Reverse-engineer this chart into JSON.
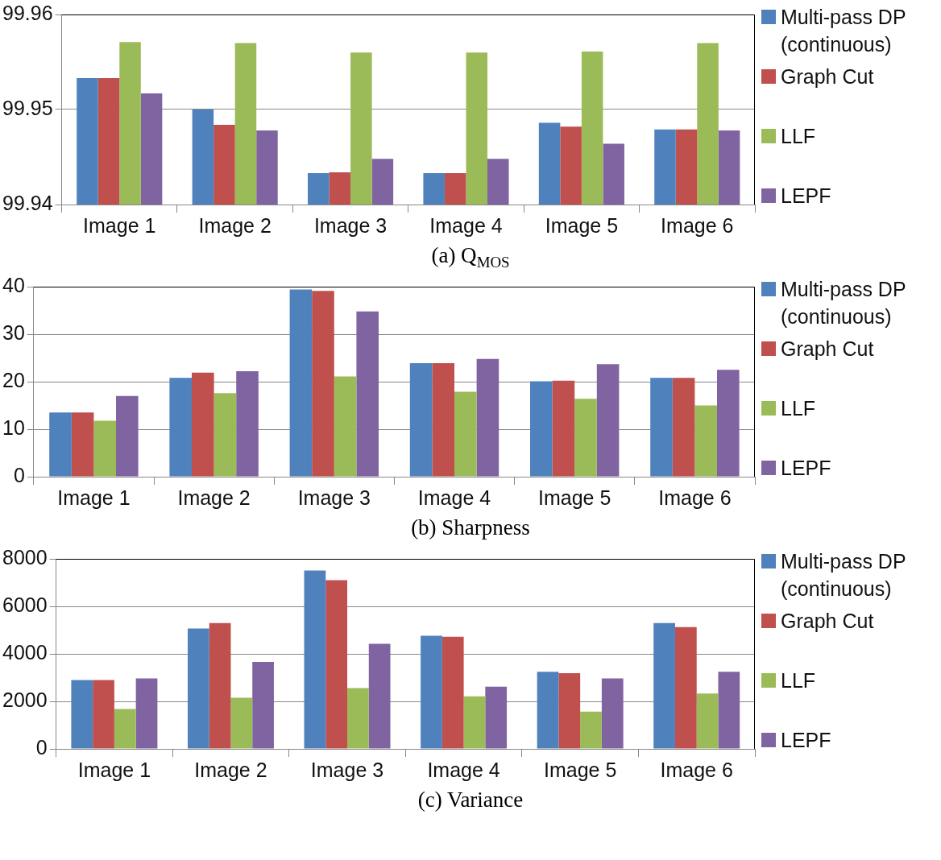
{
  "chart_data": [
    {
      "type": "bar",
      "title": "(a) Q$_{MOS}$",
      "categories": [
        "Image 1",
        "Image 2",
        "Image 3",
        "Image 4",
        "Image 5",
        "Image 6"
      ],
      "series": [
        {
          "name": "Multi-pass DP (continuous)",
          "color": "#4f81bd",
          "values": [
            99.9533,
            99.95,
            99.9433,
            99.9433,
            99.9486,
            99.9479
          ]
        },
        {
          "name": "Graph Cut",
          "color": "#c0504d",
          "values": [
            99.9533,
            99.9484,
            99.9434,
            99.9433,
            99.9482,
            99.9479
          ]
        },
        {
          "name": "LLF",
          "color": "#9bbb59",
          "values": [
            99.9571,
            99.957,
            99.956,
            99.956,
            99.9561,
            99.957
          ]
        },
        {
          "name": "LEPF",
          "color": "#8064a2",
          "values": [
            99.9517,
            99.9478,
            99.9448,
            99.9448,
            99.9464,
            99.9478
          ]
        }
      ],
      "ylim": [
        99.94,
        99.96
      ],
      "yticks": [
        99.94,
        99.95,
        99.96
      ],
      "grid": "y",
      "legend": "right"
    },
    {
      "type": "bar",
      "title": "(b) Sharpness",
      "categories": [
        "Image 1",
        "Image 2",
        "Image 3",
        "Image 4",
        "Image 5",
        "Image 6"
      ],
      "series": [
        {
          "name": "Multi-pass DP (continuous)",
          "color": "#4f81bd",
          "values": [
            13.5,
            20.8,
            39.4,
            23.9,
            20.1,
            20.8
          ]
        },
        {
          "name": "Graph Cut",
          "color": "#c0504d",
          "values": [
            13.5,
            21.9,
            39.1,
            23.9,
            20.2,
            20.8
          ]
        },
        {
          "name": "LLF",
          "color": "#9bbb59",
          "values": [
            11.8,
            17.6,
            21.1,
            17.9,
            16.4,
            15.0
          ]
        },
        {
          "name": "LEPF",
          "color": "#8064a2",
          "values": [
            17.0,
            22.2,
            34.8,
            24.8,
            23.7,
            22.5
          ]
        }
      ],
      "ylim": [
        0,
        40
      ],
      "yticks": [
        0,
        10,
        20,
        30,
        40
      ],
      "grid": "y",
      "legend": "right"
    },
    {
      "type": "bar",
      "title": "(c) Variance",
      "categories": [
        "Image 1",
        "Image 2",
        "Image 3",
        "Image 4",
        "Image 5",
        "Image 6"
      ],
      "series": [
        {
          "name": "Multi-pass DP (continuous)",
          "color": "#4f81bd",
          "values": [
            2900,
            5070,
            7510,
            4760,
            3250,
            5300
          ]
        },
        {
          "name": "Graph Cut",
          "color": "#c0504d",
          "values": [
            2900,
            5300,
            7100,
            4720,
            3190,
            5130
          ]
        },
        {
          "name": "LLF",
          "color": "#9bbb59",
          "values": [
            1680,
            2150,
            2560,
            2210,
            1570,
            2330
          ]
        },
        {
          "name": "LEPF",
          "color": "#8064a2",
          "values": [
            2970,
            3660,
            4420,
            2620,
            2970,
            3250
          ]
        }
      ],
      "ylim": [
        0,
        8000
      ],
      "yticks": [
        0,
        2000,
        4000,
        6000,
        8000
      ],
      "grid": "y",
      "legend": "right"
    }
  ]
}
